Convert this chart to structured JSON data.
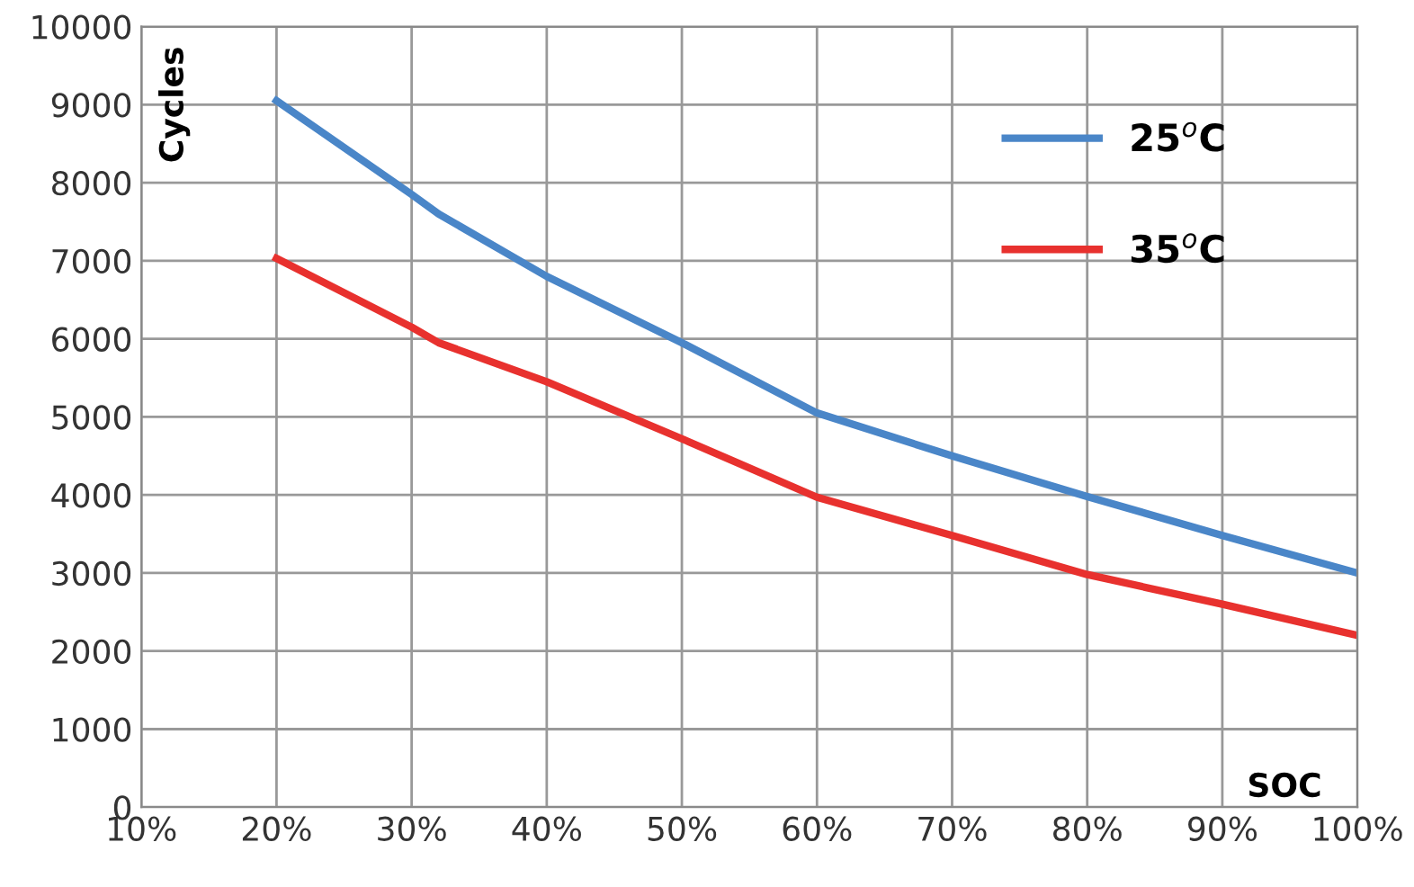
{
  "chart_data": {
    "type": "line",
    "xlabel": "SOC",
    "ylabel": "Cycles",
    "x": [
      20,
      30,
      32,
      40,
      50,
      60,
      70,
      80,
      90,
      100
    ],
    "series": [
      {
        "name": "25$^{o}$C",
        "color": "#4a86c8",
        "values": [
          9050,
          7850,
          7600,
          6800,
          5950,
          5050,
          4500,
          3980,
          3480,
          3000
        ]
      },
      {
        "name": "35$^{o}$C",
        "color": "#e8312e",
        "values": [
          7030,
          6150,
          5950,
          5450,
          4720,
          3970,
          3480,
          2980,
          2600,
          2200
        ]
      }
    ],
    "xlim": [
      10,
      100
    ],
    "ylim": [
      0,
      10000
    ],
    "xticks": [
      {
        "value": 10,
        "label": "10%"
      },
      {
        "value": 20,
        "label": "20%"
      },
      {
        "value": 30,
        "label": "30%"
      },
      {
        "value": 40,
        "label": "40%"
      },
      {
        "value": 50,
        "label": "50%"
      },
      {
        "value": 60,
        "label": "60%"
      },
      {
        "value": 70,
        "label": "70%"
      },
      {
        "value": 80,
        "label": "80%"
      },
      {
        "value": 90,
        "label": "90%"
      },
      {
        "value": 100,
        "label": "100%"
      }
    ],
    "yticks": [
      0,
      1000,
      2000,
      3000,
      4000,
      5000,
      6000,
      7000,
      8000,
      9000,
      10000
    ],
    "grid": true,
    "legend": "top right",
    "marker": "none",
    "line_style": "solid"
  }
}
